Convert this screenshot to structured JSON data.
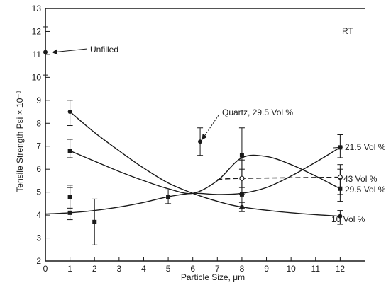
{
  "chart_data": {
    "type": "line",
    "title": "",
    "xlabel": "Particle Size, μm",
    "ylabel": "Tensile Strength Psi × 10⁻³",
    "xlim": [
      0,
      13
    ],
    "ylim": [
      2,
      13
    ],
    "x_ticks": [
      "0",
      "1",
      "2",
      "3",
      "4",
      "5",
      "6",
      "7",
      "8",
      "9",
      "10",
      "11",
      "12"
    ],
    "y_ticks": [
      "2",
      "3",
      "4",
      "5",
      "6",
      "7",
      "8",
      "9",
      "10",
      "11",
      "12",
      "13"
    ],
    "grid": false,
    "condition_label": "RT",
    "series": [
      {
        "name": "10 Vol %",
        "marker": "filled-circle",
        "line": "solid",
        "points": [
          {
            "x": 1,
            "y": 8.5,
            "err": [
              7.9,
              9.0
            ]
          },
          {
            "x": 8,
            "y": 4.35,
            "err": [
              4.15,
              4.55
            ]
          },
          {
            "x": 12,
            "y": 3.95,
            "err": [
              3.6,
              4.2
            ]
          }
        ],
        "curve": [
          [
            1,
            8.5
          ],
          [
            2,
            7.6
          ],
          [
            3,
            6.8
          ],
          [
            4,
            6.05
          ],
          [
            5,
            5.4
          ],
          [
            6,
            4.95
          ],
          [
            7,
            4.6
          ],
          [
            8,
            4.35
          ],
          [
            10,
            4.1
          ],
          [
            12,
            3.95
          ]
        ]
      },
      {
        "name": "21.5 Vol %",
        "marker": "filled-square",
        "line": "solid",
        "points": [
          {
            "x": 1,
            "y": 4.1,
            "err": [
              3.8,
              5.2
            ]
          },
          {
            "x": 2,
            "y": 3.7,
            "err": [
              2.7,
              4.7
            ]
          },
          {
            "x": 5,
            "y": 4.8,
            "err": [
              4.5,
              5.1
            ]
          },
          {
            "x": 8,
            "y": 4.9,
            "err": [
              4.3,
              6.4
            ]
          },
          {
            "x": 12,
            "y": 6.95,
            "err": [
              6.5,
              7.5
            ]
          }
        ],
        "curve": [
          [
            0,
            4.05
          ],
          [
            1,
            4.1
          ],
          [
            2,
            4.2
          ],
          [
            3,
            4.35
          ],
          [
            4,
            4.55
          ],
          [
            5,
            4.8
          ],
          [
            6,
            4.95
          ],
          [
            7,
            4.9
          ],
          [
            8,
            4.95
          ],
          [
            9,
            5.2
          ],
          [
            10,
            5.7
          ],
          [
            11,
            6.3
          ],
          [
            12,
            6.95
          ]
        ]
      },
      {
        "name": "29.5 Vol %",
        "marker": "filled-square",
        "line": "solid",
        "points": [
          {
            "x": 1,
            "y": 6.8,
            "err": [
              6.5,
              7.3
            ]
          },
          {
            "x": 1,
            "y": 4.8,
            "err": [
              4.3,
              5.3
            ]
          },
          {
            "x": 8,
            "y": 6.6,
            "err": [
              4.9,
              7.8
            ]
          },
          {
            "x": 12,
            "y": 5.15,
            "err": [
              4.6,
              6.0
            ]
          }
        ],
        "curve": [
          [
            1,
            6.8
          ],
          [
            2,
            6.35
          ],
          [
            3,
            5.9
          ],
          [
            4,
            5.5
          ],
          [
            5,
            5.15
          ],
          [
            6,
            4.95
          ],
          [
            7,
            5.5
          ],
          [
            8,
            6.5
          ],
          [
            9,
            6.55
          ],
          [
            10,
            6.2
          ],
          [
            11,
            5.7
          ],
          [
            12,
            5.15
          ]
        ]
      },
      {
        "name": "43 Vol %",
        "marker": "open-circle",
        "line": "dashed",
        "points": [
          {
            "x": 8,
            "y": 5.6,
            "err": [
              5.2,
              6.0
            ]
          },
          {
            "x": 12,
            "y": 5.65,
            "err": [
              4.9,
              6.2
            ]
          }
        ],
        "curve": [
          [
            7,
            5.55
          ],
          [
            8,
            5.6
          ],
          [
            12,
            5.65
          ]
        ]
      },
      {
        "name": "Quartz, 29.5 Vol %",
        "marker": "filled-circle",
        "line": "none",
        "points": [
          {
            "x": 6.3,
            "y": 7.2,
            "err": [
              6.6,
              7.8
            ]
          }
        ]
      },
      {
        "name": "Unfilled",
        "marker": "filled-circle",
        "line": "none",
        "points": [
          {
            "x": 0,
            "y": 11.1,
            "err": [
              10.1,
              12.2
            ]
          }
        ]
      }
    ],
    "annotations": [
      {
        "text": "Unfilled",
        "target": "Unfilled"
      },
      {
        "text": "Quartz, 29.5 Vol %",
        "target": "Quartz, 29.5 Vol %"
      },
      {
        "text": "21.5 Vol %",
        "target": "21.5 Vol %"
      },
      {
        "text": "43 Vol %",
        "target": "43 Vol %"
      },
      {
        "text": "29.5 Vol %",
        "target": "29.5 Vol %"
      },
      {
        "text": "10 Vol %",
        "target": "10 Vol %"
      }
    ]
  }
}
